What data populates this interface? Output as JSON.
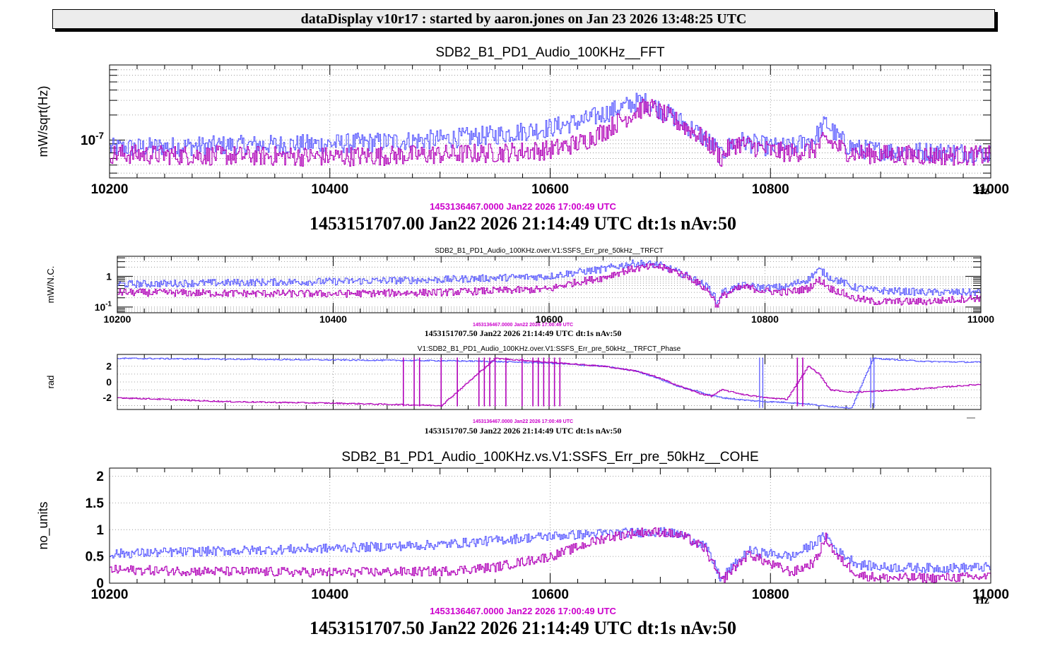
{
  "header": "dataDisplay v10r17 : started by aaron.jones on Jan 23 2026 13:48:25 UTC",
  "colors": {
    "blue": "#5a5aff",
    "magenta": "#b000b8",
    "ref_time": "#cc00cc"
  },
  "chart_data": [
    {
      "type": "line",
      "title": "SDB2_B1_PD1_Audio_100KHz__FFT",
      "ylabel": "mW/sqrt(Hz)",
      "xlabel": "Hz",
      "xlim": [
        10200,
        11000
      ],
      "ylim": [
        3.5e-08,
        8e-07
      ],
      "log_y": true,
      "xticks": [
        "10200",
        "10400",
        "10600",
        "10800",
        "11000"
      ],
      "yticks": [
        {
          "label": "10",
          "exp": "-7",
          "value": 1e-07
        }
      ],
      "ref_time": "1453136467.0000 Jan22 2026 17:00:49 UTC",
      "time": "1453151707.00 Jan22 2026 21:14:49 UTC dt:1s nAv:50",
      "series": [
        {
          "color": "blue",
          "x": [
            10200,
            10250,
            10300,
            10350,
            10400,
            10450,
            10500,
            10550,
            10600,
            10630,
            10650,
            10670,
            10680,
            10690,
            10700,
            10720,
            10740,
            10750,
            10755,
            10760,
            10770,
            10780,
            10800,
            10820,
            10840,
            10850,
            10860,
            10870,
            10880,
            10900,
            10950,
            11000
          ],
          "y": [
            8e-08,
            8.3e-08,
            8.6e-08,
            8.8e-08,
            9e-08,
            9.5e-08,
            1.02e-07,
            1.15e-07,
            1.4e-07,
            1.7e-07,
            2.1e-07,
            2.6e-07,
            2.9e-07,
            2.8e-07,
            2.3e-07,
            1.6e-07,
            1.05e-07,
            8e-08,
            6.2e-08,
            8e-08,
            1e-07,
            9.2e-08,
            8.2e-08,
            8.2e-08,
            1.05e-07,
            1.6e-07,
            1.1e-07,
            8.5e-08,
            7.8e-08,
            7.4e-08,
            7.2e-08,
            7e-08
          ]
        },
        {
          "color": "magenta",
          "x": [
            10200,
            10250,
            10300,
            10350,
            10400,
            10450,
            10500,
            10550,
            10600,
            10630,
            10650,
            10670,
            10680,
            10690,
            10700,
            10720,
            10740,
            10750,
            10755,
            10760,
            10770,
            10780,
            10800,
            10820,
            10840,
            10850,
            10860,
            10870,
            10880,
            10900,
            10950,
            11000
          ],
          "y": [
            6.8e-08,
            6.6e-08,
            6.5e-08,
            6.4e-08,
            6.3e-08,
            6.5e-08,
            6.7e-08,
            7e-08,
            7.6e-08,
            9.5e-08,
            1.3e-07,
            1.9e-07,
            2.3e-07,
            2.5e-07,
            2.1e-07,
            1.5e-07,
            1e-07,
            7.5e-08,
            6e-08,
            7.5e-08,
            9.2e-08,
            8.6e-08,
            7.4e-08,
            7e-08,
            7.8e-08,
            1e-07,
            8.4e-08,
            7.2e-08,
            6.9e-08,
            6.7e-08,
            6.5e-08,
            6.5e-08
          ]
        }
      ]
    },
    {
      "type": "line",
      "title": "SDB2_B1_PD1_Audio_100KHz.over.V1:SSFS_Err_pre_50kHz__TRFCT",
      "ylabel": "mW/N.C.",
      "xlim": [
        10200,
        11000
      ],
      "ylim": [
        0.065,
        4.5
      ],
      "log_y": true,
      "xticks": [
        "10200",
        "10400",
        "10600",
        "10800",
        "11000"
      ],
      "yticks": [
        {
          "label": "1",
          "value": 1
        },
        {
          "label": "10",
          "exp": "-1",
          "value": 0.1
        }
      ],
      "ref_time": "1453136467.0000 Jan22 2026 17:00:49 UTC",
      "time": "1453151707.50 Jan22 2026 21:14:49 UTC dt:1s nAv:50",
      "series": [
        {
          "color": "blue",
          "x": [
            10200,
            10300,
            10400,
            10500,
            10600,
            10650,
            10680,
            10700,
            10720,
            10740,
            10750,
            10755,
            10760,
            10780,
            10800,
            10820,
            10840,
            10850,
            10860,
            10880,
            10900,
            10950,
            11000
          ],
          "y": [
            0.55,
            0.62,
            0.68,
            0.78,
            1.0,
            1.7,
            2.7,
            2.4,
            1.3,
            0.6,
            0.35,
            0.12,
            0.3,
            0.5,
            0.42,
            0.45,
            0.8,
            1.6,
            0.9,
            0.45,
            0.35,
            0.3,
            0.3
          ]
        },
        {
          "color": "magenta",
          "x": [
            10200,
            10300,
            10400,
            10500,
            10600,
            10650,
            10680,
            10700,
            10720,
            10740,
            10750,
            10755,
            10760,
            10780,
            10800,
            10820,
            10840,
            10850,
            10860,
            10880,
            10900,
            10950,
            11000
          ],
          "y": [
            0.3,
            0.28,
            0.27,
            0.3,
            0.38,
            0.9,
            1.8,
            2.1,
            1.3,
            0.5,
            0.25,
            0.1,
            0.22,
            0.45,
            0.33,
            0.3,
            0.4,
            0.75,
            0.4,
            0.2,
            0.15,
            0.15,
            0.2
          ]
        }
      ]
    },
    {
      "type": "line",
      "title": "V1:SDB2_B1_PD1_Audio_100KHz.over.V1:SSFS_Err_pre_50kHz__TRFCT_Phase",
      "ylabel": "rad",
      "xlim": [
        10200,
        11000
      ],
      "ylim": [
        -3.5,
        3.5
      ],
      "xticks": [],
      "yticks": [
        {
          "label": "2",
          "value": 2
        },
        {
          "label": "0",
          "value": 0
        },
        {
          "label": "-2",
          "value": -2
        }
      ],
      "ref_time": "1453136467.0000 Jan22 2026 17:00:49 UTC",
      "time": "1453151707.50 Jan22 2026 21:14:49 UTC dt:1s nAv:50",
      "series": [
        {
          "color": "blue",
          "x": [
            10200,
            10300,
            10400,
            10500,
            10550,
            10600,
            10650,
            10680,
            10700,
            10720,
            10740,
            10750,
            10760,
            10780,
            10800,
            10820,
            10840,
            10850,
            10860,
            10880,
            10900,
            10950,
            11000
          ],
          "y": [
            3.0,
            2.9,
            2.8,
            2.7,
            2.6,
            2.4,
            2.0,
            1.4,
            0.5,
            -0.6,
            -1.3,
            -1.7,
            -2.0,
            -2.3,
            -2.5,
            -2.6,
            -2.8,
            -3.0,
            -3.1,
            -3.3,
            3.0,
            2.6,
            2.5
          ]
        },
        {
          "color": "magenta",
          "x": [
            10200,
            10300,
            10400,
            10500,
            10550,
            10600,
            10650,
            10680,
            10700,
            10720,
            10740,
            10750,
            10760,
            10780,
            10800,
            10820,
            10840,
            10850,
            10860,
            10880,
            10900,
            10950,
            11000
          ],
          "y": [
            -2.0,
            -2.5,
            -2.7,
            -3.0,
            3.0,
            2.5,
            2.0,
            1.4,
            0.6,
            -0.5,
            -1.5,
            -1.8,
            -1.0,
            -1.6,
            -2.0,
            -2.2,
            2.0,
            1.0,
            -1.0,
            -1.3,
            -1.2,
            -0.8,
            -0.3
          ]
        }
      ]
    },
    {
      "type": "line",
      "title": "SDB2_B1_PD1_Audio_100KHz.vs.V1:SSFS_Err_pre_50kHz__COHE",
      "ylabel": "no_units",
      "xlabel": "Hz",
      "xlim": [
        10200,
        11000
      ],
      "ylim": [
        0,
        2.15
      ],
      "xticks": [
        "10200",
        "10400",
        "10600",
        "10800",
        "11000"
      ],
      "yticks": [
        {
          "label": "2",
          "value": 2
        },
        {
          "label": "1.5",
          "value": 1.5
        },
        {
          "label": "1",
          "value": 1
        },
        {
          "label": "0.5",
          "value": 0.5
        },
        {
          "label": "0",
          "value": 0
        }
      ],
      "ref_time": "1453136467.0000 Jan22 2026 17:00:49 UTC",
      "time": "1453151707.50 Jan22 2026 21:14:49 UTC dt:1s nAv:50",
      "series": [
        {
          "color": "blue",
          "x": [
            10200,
            10300,
            10400,
            10500,
            10550,
            10600,
            10650,
            10680,
            10700,
            10720,
            10740,
            10750,
            10755,
            10760,
            10780,
            10800,
            10820,
            10840,
            10850,
            10860,
            10880,
            10900,
            10950,
            11000
          ],
          "y": [
            0.55,
            0.6,
            0.65,
            0.72,
            0.8,
            0.88,
            0.93,
            0.95,
            0.96,
            0.9,
            0.7,
            0.3,
            0.05,
            0.2,
            0.6,
            0.55,
            0.5,
            0.75,
            0.9,
            0.6,
            0.35,
            0.3,
            0.28,
            0.3
          ]
        },
        {
          "color": "magenta",
          "x": [
            10200,
            10300,
            10400,
            10500,
            10550,
            10600,
            10650,
            10680,
            10700,
            10720,
            10740,
            10750,
            10755,
            10760,
            10780,
            10800,
            10820,
            10840,
            10850,
            10860,
            10880,
            10900,
            10950,
            11000
          ],
          "y": [
            0.25,
            0.22,
            0.2,
            0.22,
            0.3,
            0.5,
            0.85,
            0.95,
            0.96,
            0.88,
            0.65,
            0.25,
            0.03,
            0.15,
            0.55,
            0.35,
            0.2,
            0.4,
            0.85,
            0.5,
            0.15,
            0.1,
            0.1,
            0.12
          ]
        }
      ]
    }
  ]
}
